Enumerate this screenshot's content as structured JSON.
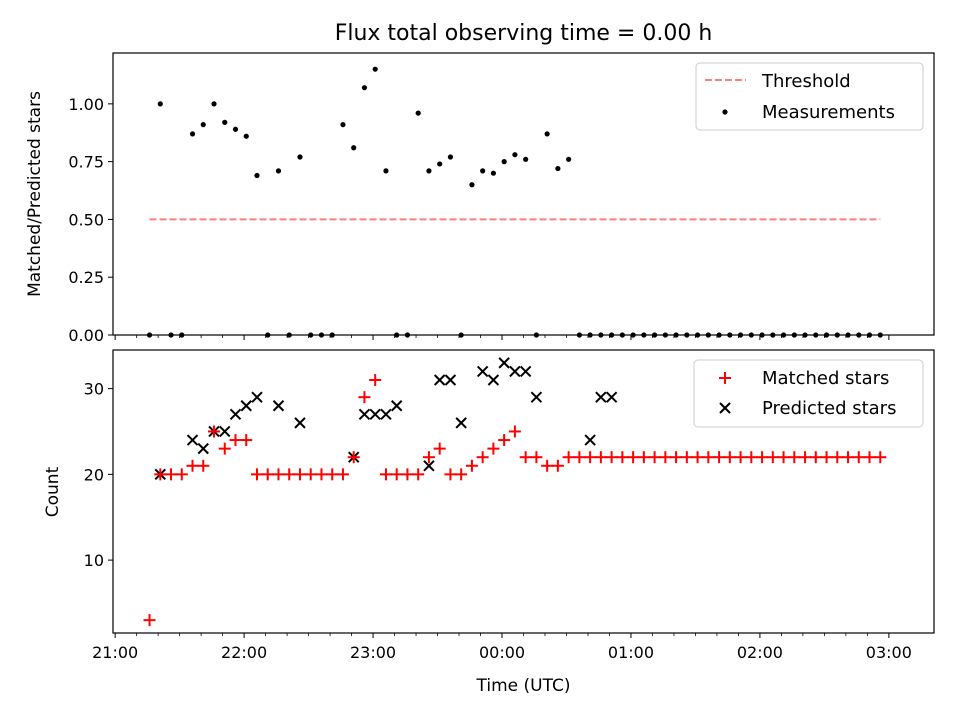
{
  "chart_data": [
    {
      "type": "scatter",
      "title": "Flux total observing time = 0.00 h",
      "xlabel": "",
      "ylabel": "Matched/Predicted stars",
      "ylim": [
        0,
        1.22
      ],
      "yticks": [
        0.0,
        0.25,
        0.5,
        0.75,
        1.0
      ],
      "ytick_labels": [
        "0.00",
        "0.25",
        "0.50",
        "0.75",
        "1.00"
      ],
      "xticks": [
        "21:00",
        "22:00",
        "23:00",
        "00:00",
        "01:00",
        "02:00",
        "03:00"
      ],
      "xtick_labels_shown": false,
      "legend_position": "top-right",
      "series": [
        {
          "name": "Threshold",
          "kind": "dashed-line",
          "color": "#ff7f7f",
          "x": [
            "21:16",
            "02:56"
          ],
          "y": [
            0.5,
            0.5
          ]
        },
        {
          "name": "Measurements",
          "kind": "points",
          "color": "#000000",
          "x": [
            "21:16",
            "21:21",
            "21:26",
            "21:31",
            "21:36",
            "21:41",
            "21:46",
            "21:51",
            "21:56",
            "22:01",
            "22:06",
            "22:11",
            "22:16",
            "22:21",
            "22:26",
            "22:31",
            "22:36",
            "22:41",
            "22:46",
            "22:51",
            "22:56",
            "23:01",
            "23:06",
            "23:11",
            "23:16",
            "23:21",
            "23:26",
            "23:31",
            "23:36",
            "23:41",
            "23:46",
            "23:51",
            "23:56",
            "00:01",
            "00:06",
            "00:11",
            "00:16",
            "00:21",
            "00:26",
            "00:31",
            "00:36",
            "00:41",
            "00:46",
            "00:51",
            "00:56",
            "01:01",
            "01:06",
            "01:11",
            "01:16",
            "01:21",
            "01:26",
            "01:31",
            "01:36",
            "01:41",
            "01:46",
            "01:51",
            "01:56",
            "02:01",
            "02:06",
            "02:11",
            "02:16",
            "02:21",
            "02:26",
            "02:31",
            "02:36",
            "02:41",
            "02:46",
            "02:51",
            "02:56"
          ],
          "y": [
            0.0,
            1.0,
            0.0,
            0.0,
            0.87,
            0.91,
            1.0,
            0.92,
            0.89,
            0.86,
            0.69,
            0.0,
            0.71,
            0.0,
            0.77,
            0.0,
            0.0,
            0.0,
            0.91,
            0.81,
            1.07,
            1.15,
            0.71,
            0.0,
            0.0,
            0.96,
            0.71,
            0.74,
            0.77,
            0.0,
            0.65,
            0.71,
            0.7,
            0.75,
            0.78,
            0.76,
            0.0,
            0.87,
            0.72,
            0.76,
            0.0,
            0.0,
            0.0,
            0.0,
            0.0,
            0.0,
            0.0,
            0.0,
            0.0,
            0.0,
            0.0,
            0.0,
            0.0,
            0.0,
            0.0,
            0.0,
            0.0,
            0.0,
            0.0,
            0.0,
            0.0,
            0.0,
            0.0,
            0.0,
            0.0,
            0.0,
            0.0,
            0.0,
            0.0
          ]
        }
      ]
    },
    {
      "type": "scatter",
      "title": "",
      "xlabel": "Time (UTC)",
      "ylabel": "Count",
      "ylim": [
        1.5,
        34.5
      ],
      "yticks": [
        10,
        20,
        30
      ],
      "ytick_labels": [
        "10",
        "20",
        "30"
      ],
      "xticks": [
        "21:00",
        "22:00",
        "23:00",
        "00:00",
        "01:00",
        "02:00",
        "03:00"
      ],
      "legend_position": "top-right",
      "series": [
        {
          "name": "Matched stars",
          "kind": "plus",
          "color": "#ff0000",
          "x": [
            "21:16",
            "21:21",
            "21:26",
            "21:31",
            "21:36",
            "21:41",
            "21:46",
            "21:51",
            "21:56",
            "22:01",
            "22:06",
            "22:11",
            "22:16",
            "22:21",
            "22:26",
            "22:31",
            "22:36",
            "22:41",
            "22:46",
            "22:51",
            "22:56",
            "23:01",
            "23:06",
            "23:11",
            "23:16",
            "23:21",
            "23:26",
            "23:31",
            "23:36",
            "23:41",
            "23:46",
            "23:51",
            "23:56",
            "00:01",
            "00:06",
            "00:11",
            "00:16",
            "00:21",
            "00:26",
            "00:31",
            "00:36",
            "00:41",
            "00:46",
            "00:51",
            "00:56",
            "01:01",
            "01:06",
            "01:11",
            "01:16",
            "01:21",
            "01:26",
            "01:31",
            "01:36",
            "01:41",
            "01:46",
            "01:51",
            "01:56",
            "02:01",
            "02:06",
            "02:11",
            "02:16",
            "02:21",
            "02:26",
            "02:31",
            "02:36",
            "02:41",
            "02:46",
            "02:51",
            "02:56"
          ],
          "y": [
            3,
            20,
            20,
            20,
            21,
            21,
            25,
            23,
            24,
            24,
            20,
            20,
            20,
            20,
            20,
            20,
            20,
            20,
            20,
            22,
            29,
            31,
            20,
            20,
            20,
            20,
            22,
            23,
            20,
            20,
            21,
            22,
            23,
            24,
            25,
            22,
            22,
            21,
            21,
            22,
            22,
            22,
            22,
            22,
            22,
            22,
            22,
            22,
            22,
            22,
            22,
            22,
            22,
            22,
            22,
            22,
            22,
            22,
            22,
            22,
            22,
            22,
            22,
            22,
            22,
            22,
            22,
            22,
            22
          ]
        },
        {
          "name": "Predicted stars",
          "kind": "x",
          "color": "#000000",
          "x": [
            "21:21",
            "21:36",
            "21:41",
            "21:46",
            "21:51",
            "21:56",
            "22:01",
            "22:06",
            "22:16",
            "22:26",
            "22:51",
            "22:56",
            "23:01",
            "23:06",
            "23:11",
            "23:26",
            "23:31",
            "23:36",
            "23:41",
            "23:51",
            "23:56",
            "00:01",
            "00:06",
            "00:11",
            "00:16",
            "00:41",
            "00:46",
            "00:51"
          ],
          "y": [
            20,
            24,
            23,
            25,
            25,
            27,
            28,
            29,
            28,
            26,
            22,
            27,
            27,
            27,
            28,
            21,
            31,
            31,
            26,
            32,
            31,
            33,
            32,
            32,
            29,
            24,
            29,
            29
          ]
        }
      ]
    }
  ]
}
